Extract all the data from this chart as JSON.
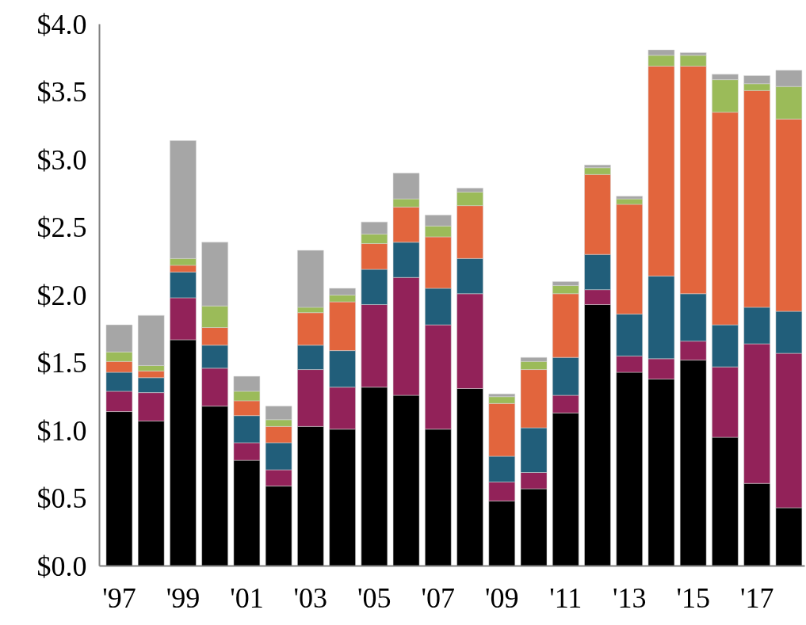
{
  "chart_data": {
    "type": "bar",
    "stacked": true,
    "categories": [
      "'97",
      null,
      "'99",
      null,
      "'01",
      null,
      "'03",
      null,
      "'05",
      null,
      "'07",
      null,
      "'09",
      null,
      "'11",
      null,
      "'13",
      null,
      "'15",
      null,
      "'17",
      null
    ],
    "series": [
      {
        "color": "#000000",
        "values": [
          1.14,
          1.07,
          1.67,
          1.18,
          0.78,
          0.59,
          1.03,
          1.01,
          1.32,
          1.26,
          1.01,
          1.31,
          0.48,
          0.57,
          1.13,
          1.93,
          1.43,
          1.38,
          1.52,
          0.95,
          0.61,
          0.43
        ]
      },
      {
        "color": "#922259",
        "values": [
          0.15,
          0.21,
          0.31,
          0.28,
          0.13,
          0.12,
          0.42,
          0.31,
          0.61,
          0.87,
          0.77,
          0.7,
          0.14,
          0.12,
          0.13,
          0.11,
          0.12,
          0.15,
          0.14,
          0.52,
          1.03,
          1.14
        ]
      },
      {
        "color": "#215e7a",
        "values": [
          0.14,
          0.11,
          0.19,
          0.17,
          0.2,
          0.2,
          0.18,
          0.27,
          0.26,
          0.26,
          0.27,
          0.26,
          0.19,
          0.33,
          0.28,
          0.26,
          0.31,
          0.61,
          0.35,
          0.31,
          0.27,
          0.31
        ]
      },
      {
        "color": "#e2653d",
        "values": [
          0.08,
          0.05,
          0.05,
          0.13,
          0.11,
          0.12,
          0.24,
          0.36,
          0.19,
          0.26,
          0.38,
          0.39,
          0.39,
          0.43,
          0.47,
          0.59,
          0.81,
          1.55,
          1.68,
          1.57,
          1.6,
          1.42
        ]
      },
      {
        "color": "#9bbb59",
        "values": [
          0.07,
          0.04,
          0.05,
          0.16,
          0.07,
          0.05,
          0.04,
          0.05,
          0.07,
          0.06,
          0.08,
          0.1,
          0.05,
          0.06,
          0.06,
          0.05,
          0.04,
          0.08,
          0.08,
          0.24,
          0.05,
          0.24
        ]
      },
      {
        "color": "#a6a6a6",
        "values": [
          0.2,
          0.37,
          0.87,
          0.47,
          0.11,
          0.1,
          0.42,
          0.05,
          0.09,
          0.19,
          0.08,
          0.03,
          0.02,
          0.03,
          0.03,
          0.02,
          0.02,
          0.04,
          0.02,
          0.04,
          0.06,
          0.12
        ]
      }
    ],
    "ylim": [
      0,
      4.0
    ],
    "yticks": [
      {
        "value": 0,
        "label": "$0.0"
      },
      {
        "value": 0.5,
        "label": "$0.5"
      },
      {
        "value": 1.0,
        "label": "$1.0"
      },
      {
        "value": 1.5,
        "label": "$1.5"
      },
      {
        "value": 2.0,
        "label": "$2.0"
      },
      {
        "value": 2.5,
        "label": "$2.5"
      },
      {
        "value": 3.0,
        "label": "$3.0"
      },
      {
        "value": 3.5,
        "label": "$3.5"
      },
      {
        "value": 4.0,
        "label": "$4.0"
      }
    ],
    "grid": false
  }
}
